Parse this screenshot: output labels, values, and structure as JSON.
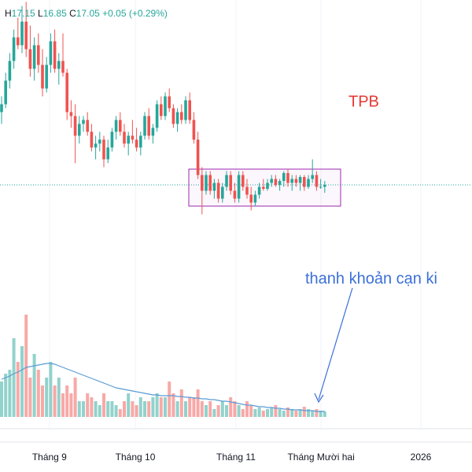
{
  "chart_data": {
    "type": "candlestick",
    "header": [
      "H",
      "17.15",
      "L",
      "16.85",
      "C",
      "17.05",
      "+0.05 (+0.29%)"
    ],
    "annotations": [
      "TPB",
      "thanh khoản cạn ki"
    ],
    "xlim": [
      -0.385,
      115
    ],
    "xticks": [
      {
        "value": 11.7,
        "label": "Tháng 9"
      },
      {
        "value": 32.7,
        "label": "Tháng 10"
      },
      {
        "value": 57.3,
        "label": "Tháng 11"
      },
      {
        "value": 78.1,
        "label": "Tháng Mười hai"
      },
      {
        "value": 102.5,
        "label": "2026"
      }
    ],
    "ylim": [
      15.75,
      21.75
    ],
    "grid": true,
    "colors": {
      "up": "#26a69a",
      "down": "#ef5350",
      "ma": "#5b9bd5",
      "box": "#9c27b0"
    },
    "ohlc": [
      [
        18.9,
        19.3,
        18.6,
        19.1
      ],
      [
        19.1,
        19.9,
        19.0,
        19.7
      ],
      [
        19.7,
        20.4,
        19.5,
        20.2
      ],
      [
        20.2,
        21.0,
        20.0,
        20.8
      ],
      [
        20.8,
        21.3,
        20.5,
        20.6
      ],
      [
        20.6,
        21.6,
        20.4,
        21.2
      ],
      [
        21.2,
        21.7,
        20.3,
        20.5
      ],
      [
        20.5,
        21.1,
        19.8,
        20.0
      ],
      [
        20.0,
        20.8,
        19.7,
        20.6
      ],
      [
        20.6,
        20.9,
        19.9,
        20.1
      ],
      [
        20.1,
        20.5,
        19.3,
        19.5
      ],
      [
        19.5,
        20.3,
        19.4,
        20.1
      ],
      [
        20.1,
        20.9,
        19.9,
        20.7
      ],
      [
        20.7,
        21.0,
        19.9,
        20.0
      ],
      [
        20.0,
        20.4,
        19.6,
        20.2
      ],
      [
        20.2,
        20.9,
        19.8,
        19.9
      ],
      [
        19.9,
        20.0,
        18.7,
        18.9
      ],
      [
        18.9,
        19.2,
        18.5,
        18.8
      ],
      [
        18.8,
        19.1,
        17.6,
        18.3
      ],
      [
        18.3,
        18.8,
        18.1,
        18.6
      ],
      [
        18.6,
        18.8,
        18.4,
        18.7
      ],
      [
        18.7,
        18.9,
        18.3,
        18.4
      ],
      [
        18.4,
        18.6,
        17.9,
        18.0
      ],
      [
        18.0,
        18.3,
        17.7,
        18.1
      ],
      [
        18.1,
        18.4,
        17.9,
        18.2
      ],
      [
        18.2,
        18.3,
        17.5,
        17.7
      ],
      [
        17.7,
        18.2,
        17.6,
        18.0
      ],
      [
        18.0,
        18.5,
        17.9,
        18.4
      ],
      [
        18.4,
        18.8,
        18.2,
        18.7
      ],
      [
        18.7,
        18.9,
        18.3,
        18.4
      ],
      [
        18.4,
        18.6,
        18.0,
        18.1
      ],
      [
        18.1,
        18.4,
        17.8,
        18.3
      ],
      [
        18.3,
        18.7,
        18.1,
        18.2
      ],
      [
        18.2,
        18.5,
        17.9,
        18.0
      ],
      [
        18.0,
        18.4,
        17.8,
        18.3
      ],
      [
        18.3,
        18.9,
        18.2,
        18.8
      ],
      [
        18.8,
        19.0,
        18.2,
        18.3
      ],
      [
        18.3,
        18.6,
        18.1,
        18.5
      ],
      [
        18.5,
        19.2,
        18.4,
        19.1
      ],
      [
        19.1,
        19.3,
        18.7,
        18.8
      ],
      [
        18.8,
        19.4,
        18.7,
        19.3
      ],
      [
        19.3,
        19.5,
        18.9,
        19.0
      ],
      [
        19.0,
        19.1,
        18.5,
        18.6
      ],
      [
        18.6,
        19.0,
        18.4,
        18.9
      ],
      [
        18.9,
        19.1,
        18.6,
        18.7
      ],
      [
        18.7,
        19.3,
        18.6,
        19.2
      ],
      [
        19.2,
        19.4,
        18.6,
        18.7
      ],
      [
        18.7,
        18.9,
        18.1,
        18.2
      ],
      [
        18.2,
        18.4,
        17.2,
        17.3
      ],
      [
        17.3,
        17.5,
        16.3,
        16.9
      ],
      [
        16.9,
        17.4,
        16.8,
        17.3
      ],
      [
        17.3,
        17.4,
        16.8,
        16.9
      ],
      [
        16.9,
        17.2,
        16.7,
        17.1
      ],
      [
        17.1,
        17.2,
        16.6,
        16.7
      ],
      [
        16.7,
        17.1,
        16.6,
        17.0
      ],
      [
        17.0,
        17.4,
        16.9,
        17.3
      ],
      [
        17.3,
        17.4,
        16.8,
        16.9
      ],
      [
        16.9,
        17.1,
        16.6,
        16.7
      ],
      [
        16.7,
        17.4,
        16.6,
        17.3
      ],
      [
        17.3,
        17.4,
        16.9,
        17.0
      ],
      [
        17.0,
        17.2,
        16.7,
        16.8
      ],
      [
        16.8,
        17.0,
        16.4,
        16.6
      ],
      [
        16.6,
        16.9,
        16.5,
        16.8
      ],
      [
        16.8,
        17.1,
        16.7,
        17.0
      ],
      [
        17.0,
        17.2,
        16.9,
        16.95
      ],
      [
        16.95,
        17.2,
        16.9,
        17.1
      ],
      [
        17.1,
        17.3,
        17.0,
        17.2
      ],
      [
        17.2,
        17.3,
        17.0,
        17.05
      ],
      [
        17.05,
        17.2,
        16.9,
        17.15
      ],
      [
        17.15,
        17.4,
        17.0,
        17.35
      ],
      [
        17.35,
        17.45,
        17.0,
        17.1
      ],
      [
        17.1,
        17.3,
        16.9,
        17.2
      ],
      [
        17.2,
        17.3,
        17.0,
        17.1
      ],
      [
        17.1,
        17.3,
        16.9,
        17.25
      ],
      [
        17.25,
        17.3,
        16.9,
        17.0
      ],
      [
        17.0,
        17.3,
        16.95,
        17.2
      ],
      [
        17.2,
        17.7,
        17.1,
        17.3
      ],
      [
        17.3,
        17.4,
        16.9,
        17.0
      ],
      [
        17.0,
        17.2,
        16.95,
        17.0
      ],
      [
        17.0,
        17.15,
        16.85,
        17.05
      ]
    ],
    "vlim": [
      0,
      13
    ],
    "volume": [
      4.5,
      5.5,
      6,
      10,
      7,
      9,
      13,
      5,
      8,
      6,
      4,
      5,
      7,
      4,
      5,
      3,
      4,
      3,
      5,
      2,
      2,
      3,
      2.5,
      2,
      1.5,
      3,
      2,
      2,
      1.5,
      1,
      2,
      3,
      2,
      1.5,
      2.5,
      2,
      2,
      2.5,
      3,
      2.5,
      2.5,
      4.5,
      3,
      2,
      3.5,
      2,
      2.5,
      2.5,
      3.5,
      2,
      1.5,
      2,
      1,
      1.5,
      2,
      1.5,
      2.5,
      2,
      1.5,
      1,
      2,
      1.5,
      1,
      1.2,
      0.8,
      1,
      1.2,
      1.5,
      1,
      0.8,
      1.2,
      1,
      0.8,
      1,
      1.3,
      1,
      0.8,
      1,
      0.8,
      0.7
    ],
    "volume_ma": [
      4.8,
      5.0,
      5.2,
      5.5,
      5.7,
      6.0,
      6.3,
      6.4,
      6.5,
      6.6,
      6.7,
      6.8,
      6.8,
      6.7,
      6.5,
      6.3,
      6.1,
      5.9,
      5.7,
      5.5,
      5.3,
      5.1,
      4.9,
      4.7,
      4.5,
      4.3,
      4.1,
      3.9,
      3.7,
      3.6,
      3.5,
      3.4,
      3.3,
      3.2,
      3.1,
      3.0,
      2.9,
      2.8,
      2.8,
      2.7,
      2.7,
      2.7,
      2.7,
      2.6,
      2.6,
      2.5,
      2.5,
      2.4,
      2.4,
      2.3,
      2.3,
      2.2,
      2.2,
      2.1,
      2.0,
      2.0,
      1.9,
      1.8,
      1.7,
      1.6,
      1.5,
      1.5,
      1.4,
      1.3,
      1.3,
      1.2,
      1.2,
      1.1,
      1.1,
      1.0,
      1.0,
      0.9,
      0.9,
      0.9,
      0.8,
      0.8,
      0.8,
      0.7,
      0.7,
      0.7
    ]
  }
}
